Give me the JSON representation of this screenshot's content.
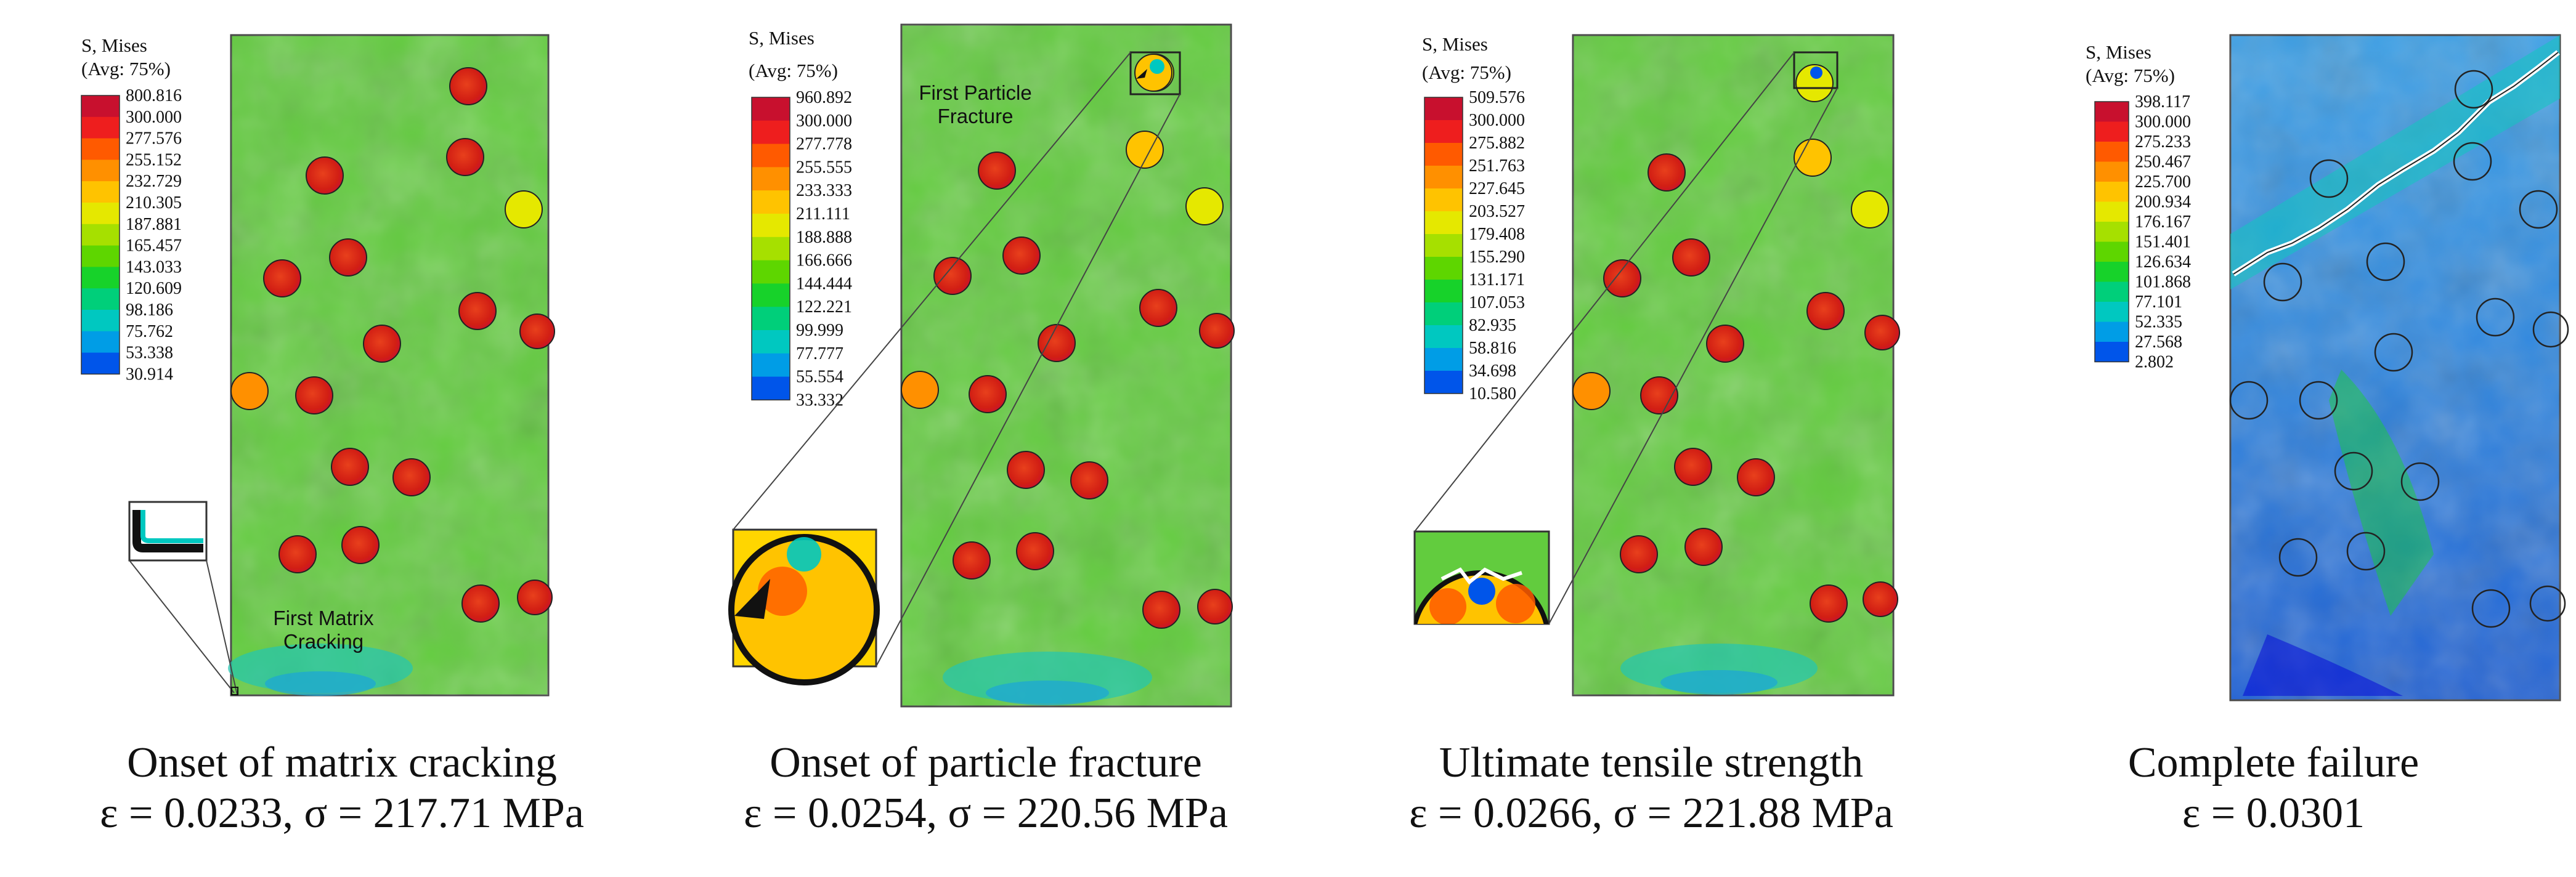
{
  "colors": {
    "scale": [
      "#c8102e",
      "#ee1e1e",
      "#ff5a00",
      "#ff9000",
      "#ffc300",
      "#e5e800",
      "#a6e000",
      "#5ed600",
      "#17d22a",
      "#00cf7a",
      "#00c8c0",
      "#009de6",
      "#0055ea",
      "#0000d8"
    ],
    "matrix_green": "#62cc3e",
    "particle_red": "#d42a1a",
    "panel4_blue": "#2f8de0"
  },
  "panels": [
    {
      "legend": {
        "title1": "S, Mises",
        "title2": "(Avg: 75%)",
        "values": [
          "800.816",
          "300.000",
          "277.576",
          "255.152",
          "232.729",
          "210.305",
          "187.881",
          "165.457",
          "143.033",
          "120.609",
          "98.186",
          "75.762",
          "53.338",
          "30.914"
        ]
      },
      "annotation": {
        "line1": "First Matrix",
        "line2": "Cracking"
      },
      "caption": {
        "line1": "Onset of matrix cracking",
        "line2": "ε = 0.0233, σ = 217.71 MPa"
      },
      "stage": "matrix"
    },
    {
      "legend": {
        "title1": "S, Mises",
        "title2": "(Avg: 75%)",
        "values": [
          "960.892",
          "300.000",
          "277.778",
          "255.555",
          "233.333",
          "211.111",
          "188.888",
          "166.666",
          "144.444",
          "122.221",
          "99.999",
          "77.777",
          "55.554",
          "33.332"
        ]
      },
      "annotation": {
        "line1": "First Particle",
        "line2": "Fracture"
      },
      "caption": {
        "line1": "Onset of particle fracture",
        "line2": "ε = 0.0254, σ = 220.56 MPa"
      },
      "stage": "particle"
    },
    {
      "legend": {
        "title1": "S, Mises",
        "title2": "(Avg: 75%)",
        "values": [
          "509.576",
          "300.000",
          "275.882",
          "251.763",
          "227.645",
          "203.527",
          "179.408",
          "155.290",
          "131.171",
          "107.053",
          "82.935",
          "58.816",
          "34.698",
          "10.580"
        ]
      },
      "caption": {
        "line1": "Ultimate tensile strength",
        "line2": "ε = 0.0266, σ = 221.88 MPa"
      },
      "stage": "uts"
    },
    {
      "legend": {
        "title1": "S, Mises",
        "title2": "(Avg: 75%)",
        "values": [
          "398.117",
          "300.000",
          "275.233",
          "250.467",
          "225.700",
          "200.934",
          "176.167",
          "151.401",
          "126.634",
          "101.868",
          "77.101",
          "52.335",
          "27.568",
          "2.802"
        ]
      },
      "caption": {
        "line1": "Complete failure",
        "line2": "ε = 0.0301"
      },
      "stage": "failure"
    }
  ]
}
